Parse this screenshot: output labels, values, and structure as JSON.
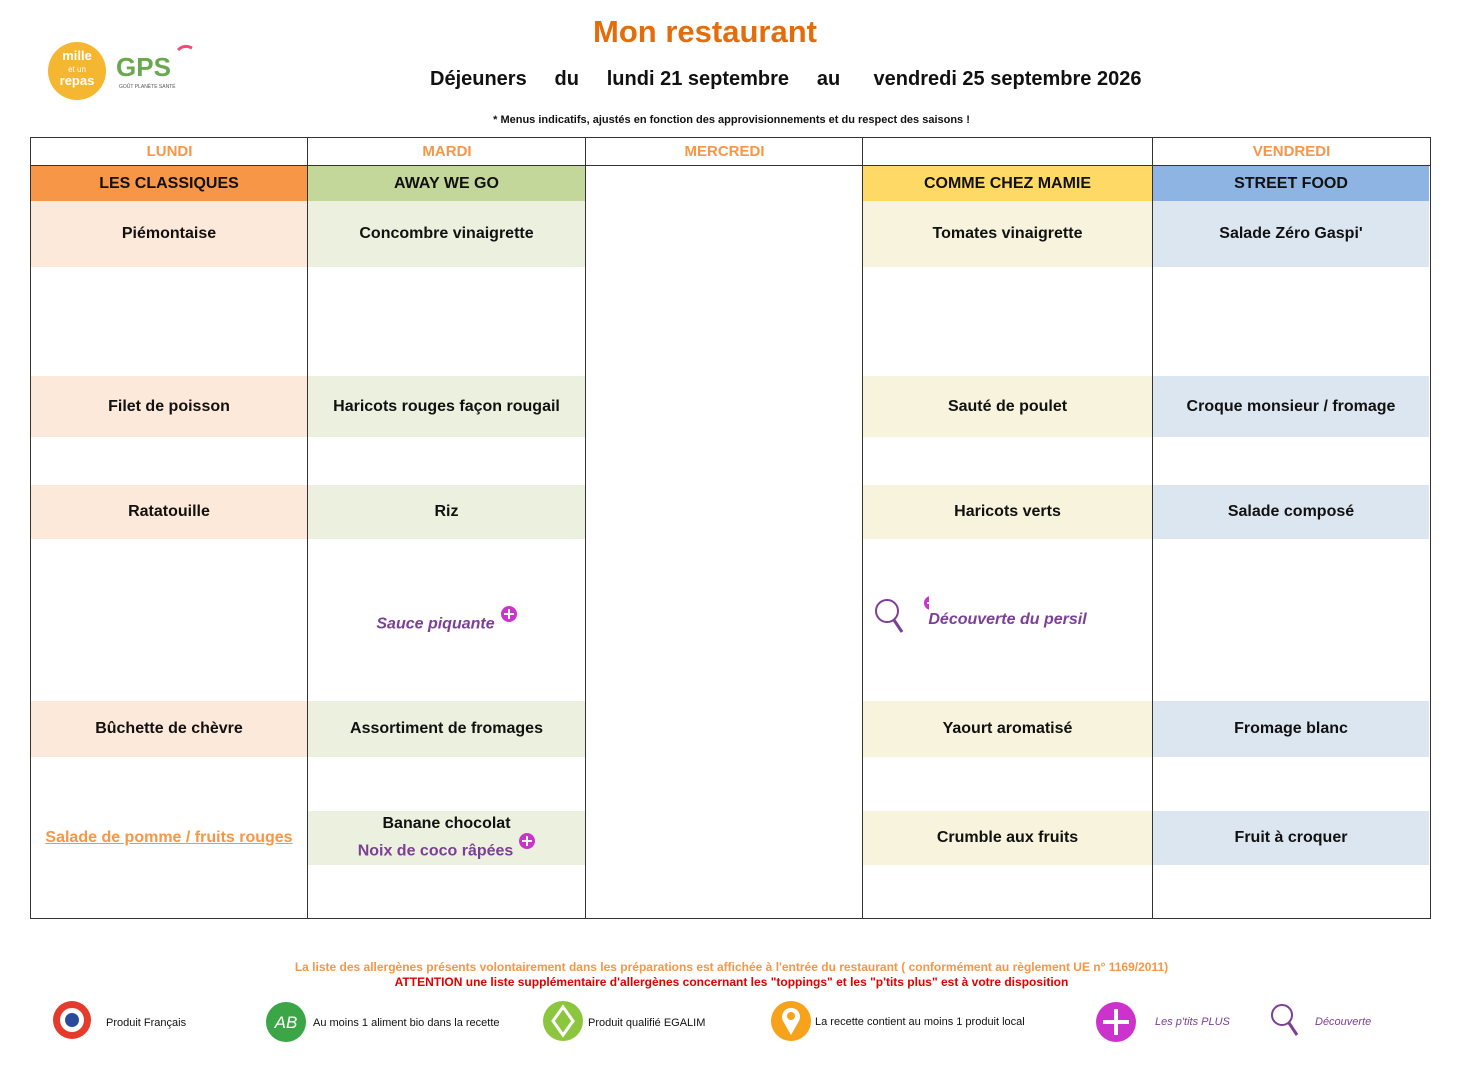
{
  "header": {
    "title": "Mon restaurant",
    "logo": {
      "mille": "mille",
      "et_un": "et un",
      "repas": "repas",
      "gps": "GPS",
      "gps_tagline": "GOÛT PLANÈTE SANTÉ"
    },
    "period": [
      "Déjeuners",
      "du",
      "lundi 21 septembre",
      "au",
      "vendredi 25 septembre 2026"
    ],
    "note": "* Menus indicatifs, ajustés en fonction des approvisionnements et du respect des saisons !"
  },
  "table": {
    "columns": [
      {
        "day": "LUNDI",
        "theme": "LES CLASSIQUES",
        "theme_color": "#f79646",
        "cell_color": "#fde9d9",
        "items": [
          {
            "text": "Piémontaise"
          },
          {
            "text": "Filet de poisson"
          },
          {
            "text": "Ratatouille"
          },
          null,
          {
            "text": "Bûchette de chèvre"
          },
          {
            "text": "Salade de pomme / fruits rouges",
            "style": "link"
          }
        ]
      },
      {
        "day": "MARDI",
        "theme": "AWAY WE GO",
        "theme_color": "#c4d79b",
        "cell_color": "#ebf1de",
        "items": [
          {
            "text": "Concombre vinaigrette"
          },
          {
            "text": "Haricots rouges façon rougail"
          },
          {
            "text": "Riz"
          },
          {
            "text": "Sauce piquante",
            "style": "plus"
          },
          {
            "text": "Assortiment de fromages"
          },
          {
            "text": "Banane chocolat",
            "extra": "Noix de coco râpées"
          }
        ]
      },
      {
        "day": "MERCREDI",
        "theme": null,
        "theme_color": null,
        "cell_color": null,
        "items": [
          null,
          null,
          null,
          null,
          null,
          null
        ]
      },
      {
        "day": null,
        "theme": "COMME CHEZ MAMIE",
        "theme_color": "#ffd966",
        "cell_color": "#f7f3dd",
        "items": [
          {
            "text": "Tomates vinaigrette"
          },
          {
            "text": "Sauté de poulet"
          },
          {
            "text": "Haricots verts"
          },
          {
            "text": "Découverte du persil",
            "style": "discovery"
          },
          {
            "text": "Yaourt aromatisé"
          },
          {
            "text": "Crumble aux fruits"
          }
        ]
      },
      {
        "day": "VENDREDI",
        "theme": "STREET FOOD",
        "theme_color": "#8db4e2",
        "cell_color": "#dce6f1",
        "items": [
          {
            "text": "Salade Zéro Gaspi'"
          },
          {
            "text": "Croque monsieur / fromage"
          },
          {
            "text": "Salade composé"
          },
          null,
          {
            "text": "Fromage blanc"
          },
          {
            "text": "Fruit à croquer"
          }
        ]
      }
    ]
  },
  "footer": {
    "allergens": "La liste des allergènes présents volontairement dans les préparations est affichée à l'entrée du restaurant ( conformément au règlement UE n° 1169/2011)",
    "attention": "ATTENTION une liste supplémentaire d'allergènes concernant les \"toppings\" et les \"p'tits plus\" est à votre disposition",
    "legend": [
      "Produit Français",
      "Au moins 1 aliment bio dans la recette",
      "Produit qualifié EGALIM",
      "La recette contient au moins 1 produit local",
      "Les p'tits PLUS",
      "Découverte"
    ]
  }
}
